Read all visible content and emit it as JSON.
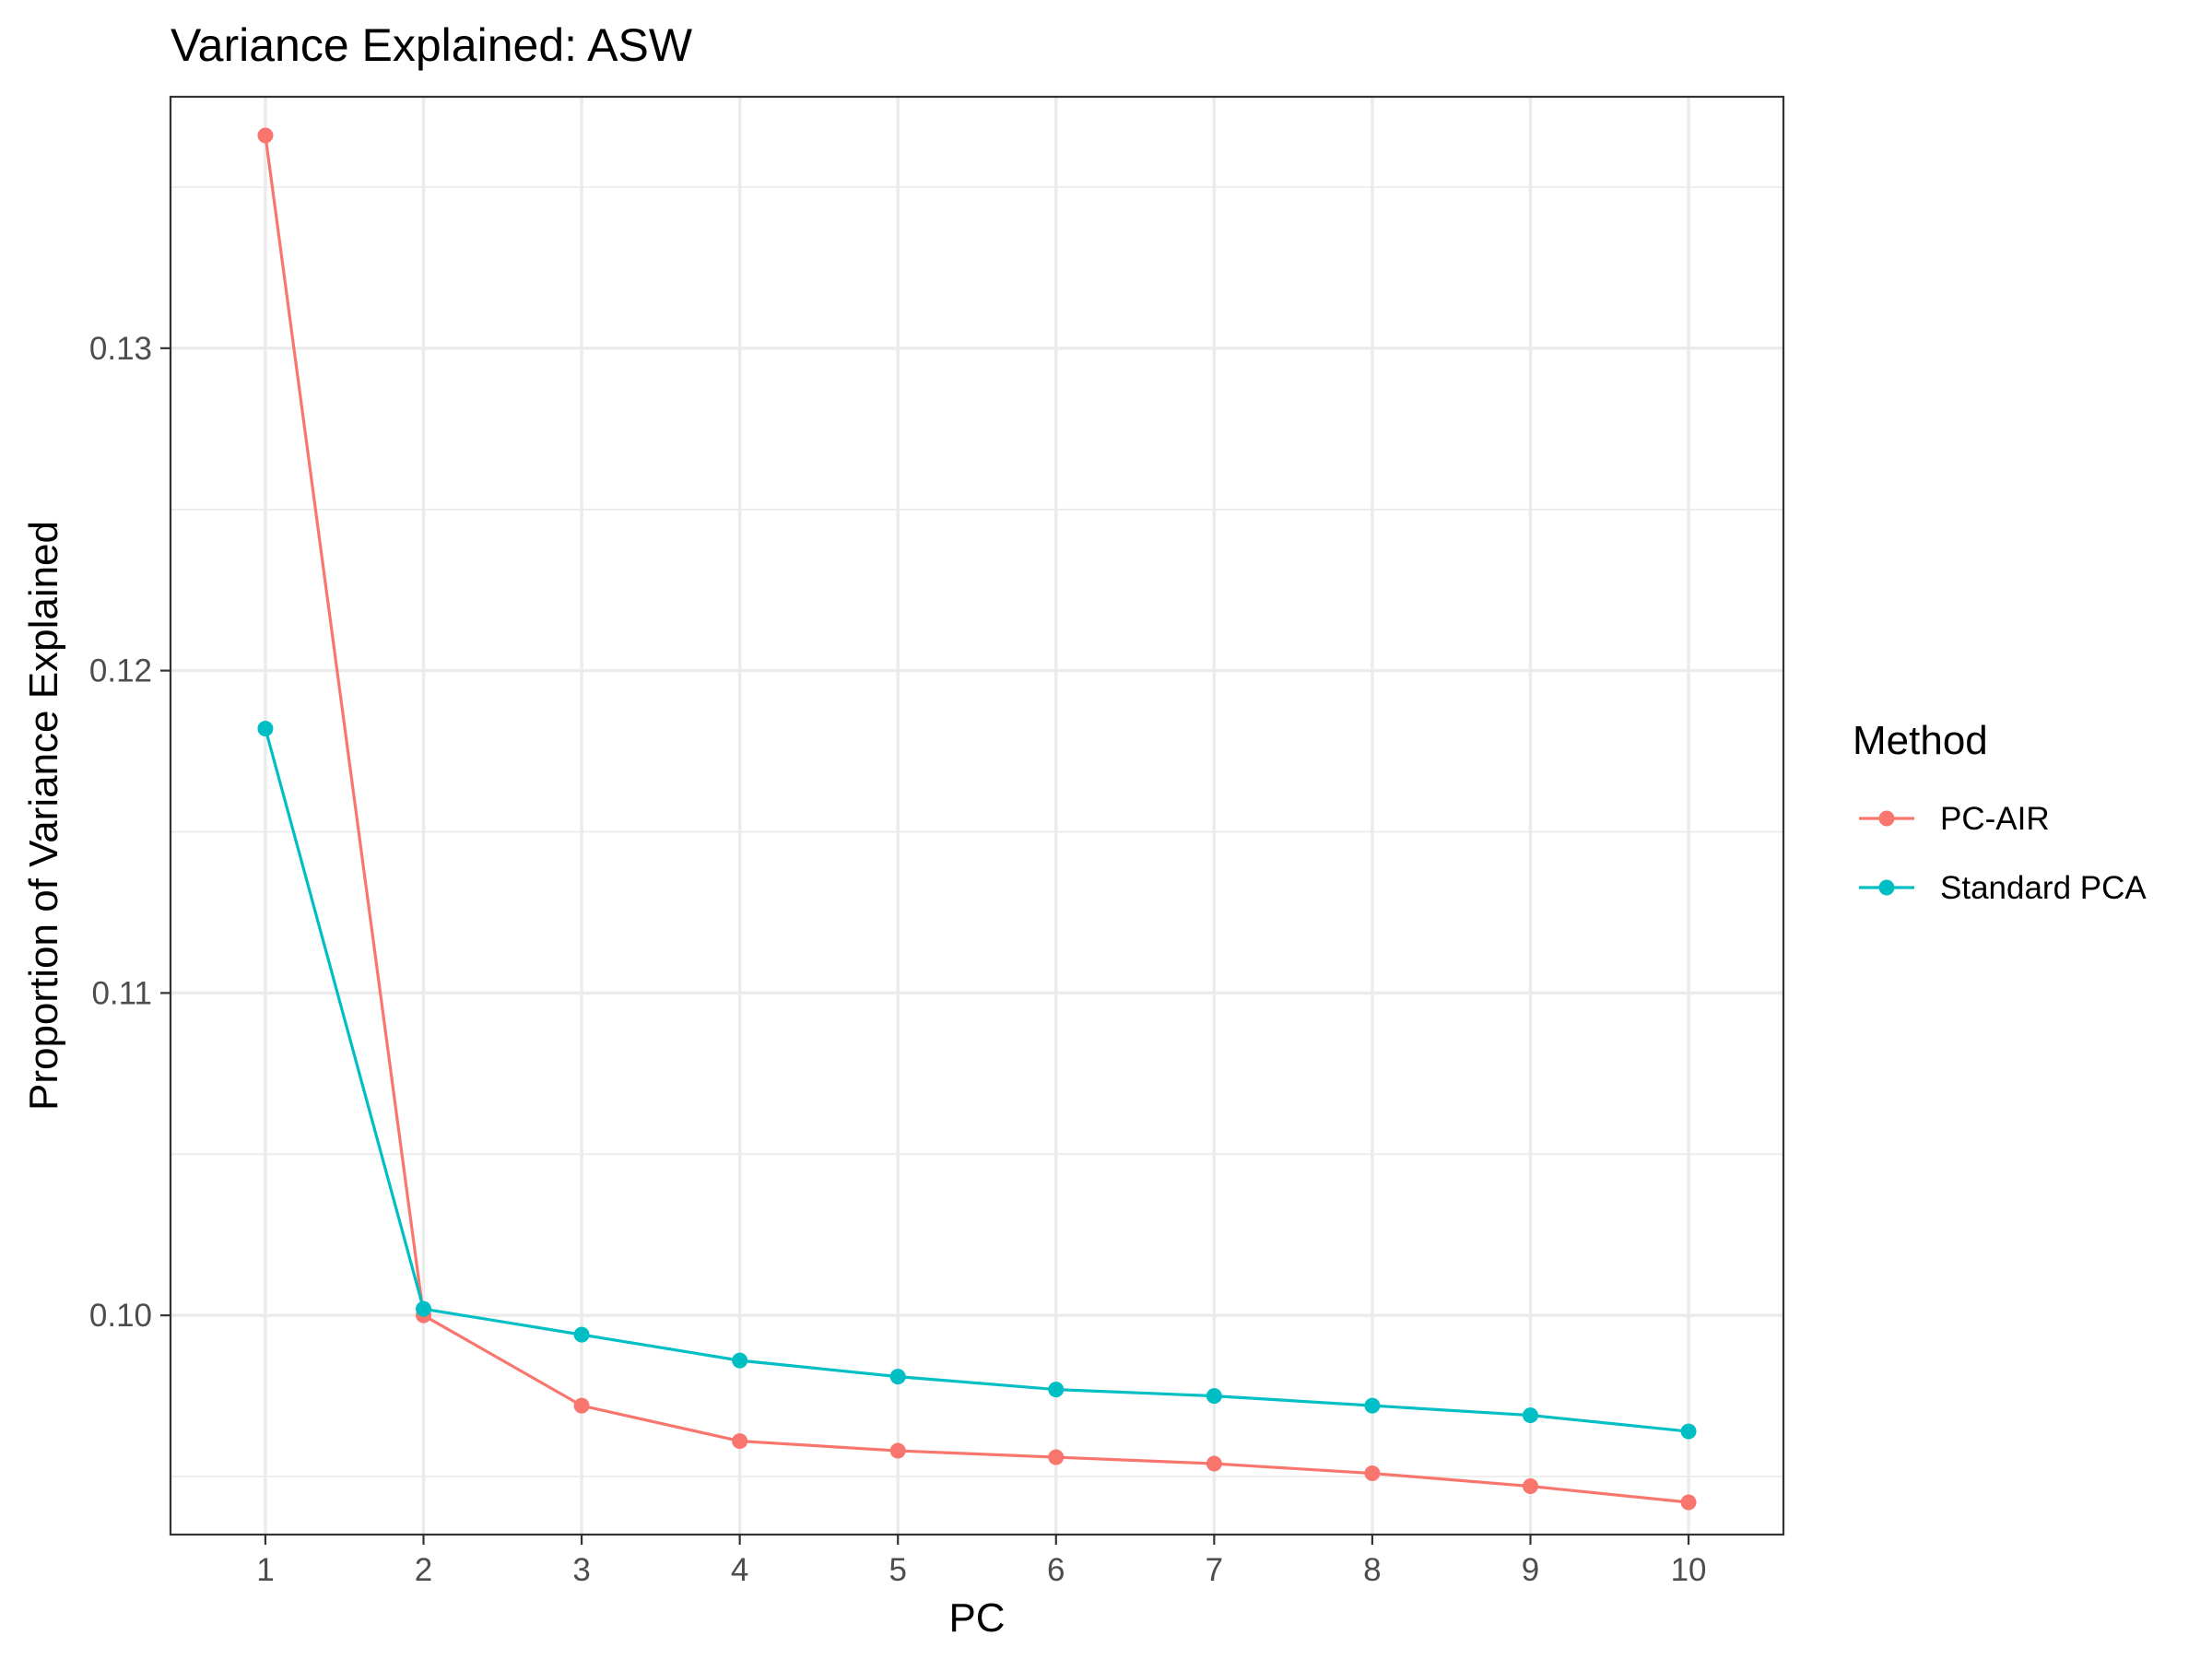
{
  "chart_data": {
    "type": "line",
    "title": "Variance Explained: ASW",
    "xlabel": "PC",
    "ylabel": "Proportion of Variance Explained",
    "x": [
      1,
      2,
      3,
      4,
      5,
      6,
      7,
      8,
      9,
      10
    ],
    "x_ticks": [
      "1",
      "2",
      "3",
      "4",
      "5",
      "6",
      "7",
      "8",
      "9",
      "10"
    ],
    "y_ticks": [
      0.1,
      0.11,
      0.12,
      0.13
    ],
    "y_tick_labels": [
      "0.10",
      "0.11",
      "0.12",
      "0.13"
    ],
    "xlim": [
      0.4,
      10.6
    ],
    "ylim": [
      0.0932,
      0.1378
    ],
    "grid": true,
    "legend": {
      "title": "Method",
      "placement": "right"
    },
    "series": [
      {
        "name": "PC-AIR",
        "color": "#F8766D",
        "values": [
          0.1366,
          0.1,
          0.0972,
          0.0961,
          0.0958,
          0.0956,
          0.0954,
          0.0951,
          0.0947,
          0.0942
        ]
      },
      {
        "name": "Standard PCA",
        "color": "#00BFC4",
        "values": [
          0.1182,
          0.1002,
          0.0994,
          0.0986,
          0.0981,
          0.0977,
          0.0975,
          0.0972,
          0.0969,
          0.0964
        ]
      }
    ]
  }
}
